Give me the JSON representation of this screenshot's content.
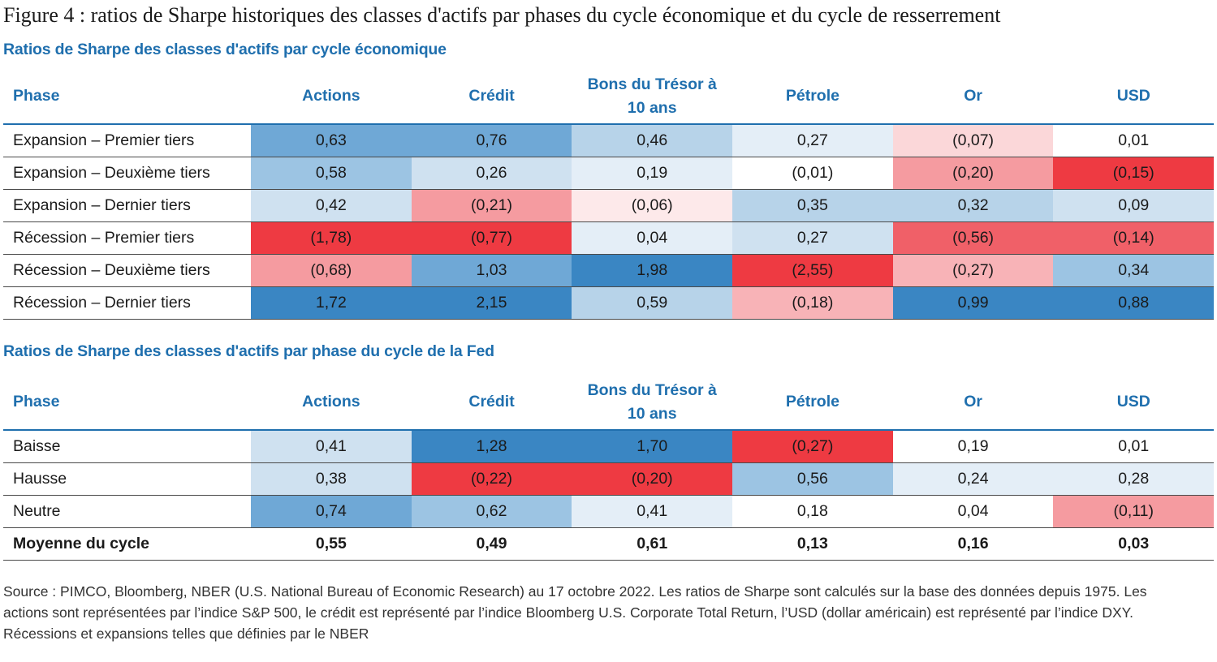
{
  "figure_title": "Figure 4 : ratios de Sharpe historiques des classes d'actifs par phases du cycle économique et du cycle de resserrement",
  "tables": [
    {
      "title": "Ratios de Sharpe des classes d'actifs par cycle économique",
      "headers": [
        "Phase",
        "Actions",
        "Crédit",
        "Bons du Trésor à 10 ans",
        "Pétrole",
        "Or",
        "USD"
      ],
      "rows": [
        {
          "label": "Expansion – Premier tiers",
          "cells": [
            {
              "value": "0,63",
              "bg": "#6fa8d6"
            },
            {
              "value": "0,76",
              "bg": "#6fa8d6"
            },
            {
              "value": "0,46",
              "bg": "#b7d3e9"
            },
            {
              "value": "0,27",
              "bg": "#e4eef7"
            },
            {
              "value": "(0,07)",
              "bg": "#fbd7d9"
            },
            {
              "value": "0,01",
              "bg": "#ffffff"
            }
          ]
        },
        {
          "label": "Expansion – Deuxième tiers",
          "cells": [
            {
              "value": "0,58",
              "bg": "#9cc4e3"
            },
            {
              "value": "0,26",
              "bg": "#cfe1f0"
            },
            {
              "value": "0,19",
              "bg": "#e4eef7"
            },
            {
              "value": "(0,01)",
              "bg": "#ffffff"
            },
            {
              "value": "(0,20)",
              "bg": "#f59ba0"
            },
            {
              "value": "(0,15)",
              "bg": "#ee3a42"
            }
          ]
        },
        {
          "label": "Expansion – Dernier tiers",
          "cells": [
            {
              "value": "0,42",
              "bg": "#cfe1f0"
            },
            {
              "value": "(0,21)",
              "bg": "#f59ba0"
            },
            {
              "value": "(0,06)",
              "bg": "#fde9ea"
            },
            {
              "value": "0,35",
              "bg": "#b7d3e9"
            },
            {
              "value": "0,32",
              "bg": "#b7d3e9"
            },
            {
              "value": "0,09",
              "bg": "#cfe1f0"
            }
          ]
        },
        {
          "label": "Récession – Premier tiers",
          "cells": [
            {
              "value": "(1,78)",
              "bg": "#ee3a42"
            },
            {
              "value": "(0,77)",
              "bg": "#ee3a42"
            },
            {
              "value": "0,04",
              "bg": "#e4eef7"
            },
            {
              "value": "0,27",
              "bg": "#cfe1f0"
            },
            {
              "value": "(0,56)",
              "bg": "#f06068"
            },
            {
              "value": "(0,14)",
              "bg": "#f06068"
            }
          ]
        },
        {
          "label": "Récession – Deuxième tiers",
          "cells": [
            {
              "value": "(0,68)",
              "bg": "#f59ba0"
            },
            {
              "value": "1,03",
              "bg": "#6fa8d6"
            },
            {
              "value": "1,98",
              "bg": "#3a86c3"
            },
            {
              "value": "(2,55)",
              "bg": "#ee3a42"
            },
            {
              "value": "(0,27)",
              "bg": "#f8b3b7"
            },
            {
              "value": "0,34",
              "bg": "#9cc4e3"
            }
          ]
        },
        {
          "label": "Récession – Dernier tiers",
          "cells": [
            {
              "value": "1,72",
              "bg": "#3a86c3"
            },
            {
              "value": "2,15",
              "bg": "#3a86c3"
            },
            {
              "value": "0,59",
              "bg": "#b7d3e9"
            },
            {
              "value": "(0,18)",
              "bg": "#f8b3b7"
            },
            {
              "value": "0,99",
              "bg": "#3a86c3"
            },
            {
              "value": "0,88",
              "bg": "#3a86c3"
            }
          ]
        }
      ]
    },
    {
      "title": "Ratios de Sharpe des classes d'actifs par phase du cycle de la Fed",
      "headers": [
        "Phase",
        "Actions",
        "Crédit",
        "Bons du Trésor à 10 ans",
        "Pétrole",
        "Or",
        "USD"
      ],
      "rows": [
        {
          "label": "Baisse",
          "cells": [
            {
              "value": "0,41",
              "bg": "#cfe1f0"
            },
            {
              "value": "1,28",
              "bg": "#3a86c3"
            },
            {
              "value": "1,70",
              "bg": "#3a86c3"
            },
            {
              "value": "(0,27)",
              "bg": "#ee3a42"
            },
            {
              "value": "0,19",
              "bg": "#ffffff"
            },
            {
              "value": "0,01",
              "bg": "#ffffff"
            }
          ]
        },
        {
          "label": "Hausse",
          "cells": [
            {
              "value": "0,38",
              "bg": "#cfe1f0"
            },
            {
              "value": "(0,22)",
              "bg": "#ee3a42"
            },
            {
              "value": "(0,20)",
              "bg": "#ee3a42"
            },
            {
              "value": "0,56",
              "bg": "#9cc4e3"
            },
            {
              "value": "0,24",
              "bg": "#e4eef7"
            },
            {
              "value": "0,28",
              "bg": "#e4eef7"
            }
          ]
        },
        {
          "label": "Neutre",
          "cells": [
            {
              "value": "0,74",
              "bg": "#6fa8d6"
            },
            {
              "value": "0,62",
              "bg": "#9cc4e3"
            },
            {
              "value": "0,41",
              "bg": "#e4eef7"
            },
            {
              "value": "0,18",
              "bg": "#ffffff"
            },
            {
              "value": "0,04",
              "bg": "#ffffff"
            },
            {
              "value": "(0,11)",
              "bg": "#f59ba0"
            }
          ]
        }
      ],
      "average_row": {
        "label": "Moyenne du cycle",
        "values": [
          "0,55",
          "0,49",
          "0,61",
          "0,13",
          "0,16",
          "0,03"
        ]
      }
    }
  ],
  "source_note": "Source : PIMCO, Bloomberg, NBER (U.S. National Bureau of Economic Research) au 17 octobre 2022. Les ratios de Sharpe sont calculés sur la base des données depuis 1975. Les actions sont représentées par l’indice S&P 500, le crédit est représenté par l’indice Bloomberg U.S. Corporate Total Return, l’USD (dollar américain) est représenté par l’indice DXY. Récessions et expansions telles que définies par le NBER"
}
